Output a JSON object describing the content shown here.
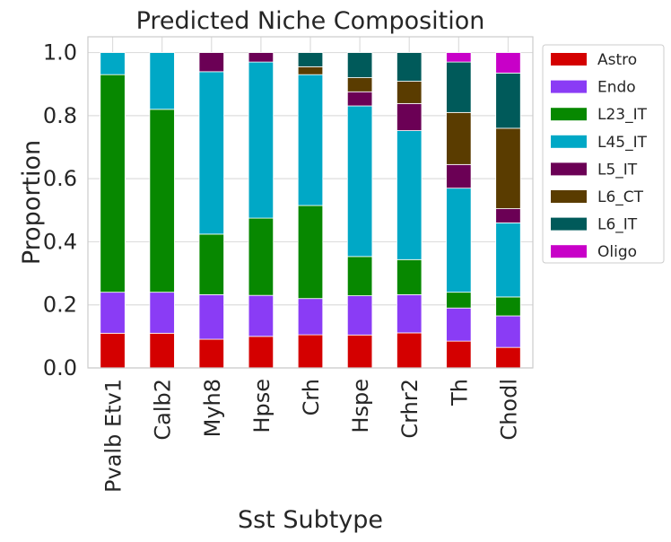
{
  "chart_data": {
    "type": "bar",
    "stacked": true,
    "title": "Predicted Niche Composition",
    "xlabel": "Sst Subtype",
    "ylabel": "Proportion",
    "ylim": [
      0,
      1.05
    ],
    "yticks": [
      "0.0",
      "0.2",
      "0.4",
      "0.6",
      "0.8",
      "1.0"
    ],
    "categories": [
      "Pvalb Etv1",
      "Calb2",
      "Myh8",
      "Hpse",
      "Crh",
      "Hspe",
      "Crhr2",
      "Th",
      "Chodl"
    ],
    "grid": true,
    "legend_position": "outside-right",
    "series": [
      {
        "name": "Astro",
        "color": "#d40000",
        "values": [
          0.11,
          0.11,
          0.09,
          0.1,
          0.105,
          0.105,
          0.11,
          0.085,
          0.065
        ]
      },
      {
        "name": "Endo",
        "color": "#8a3cf5",
        "values": [
          0.13,
          0.13,
          0.14,
          0.13,
          0.115,
          0.125,
          0.12,
          0.105,
          0.1
        ]
      },
      {
        "name": "L23_IT",
        "color": "#078800",
        "values": [
          0.69,
          0.58,
          0.19,
          0.245,
          0.295,
          0.125,
          0.11,
          0.05,
          0.06
        ]
      },
      {
        "name": "L45_IT",
        "color": "#00a8c6",
        "values": [
          0.07,
          0.18,
          0.51,
          0.495,
          0.415,
          0.48,
          0.405,
          0.33,
          0.235
        ]
      },
      {
        "name": "L5_IT",
        "color": "#6b0055",
        "values": [
          0,
          0,
          0.06,
          0.03,
          0,
          0.045,
          0.085,
          0.075,
          0.045
        ]
      },
      {
        "name": "L6_CT",
        "color": "#5a3c00",
        "values": [
          0,
          0,
          0,
          0,
          0.025,
          0.045,
          0.07,
          0.165,
          0.255
        ]
      },
      {
        "name": "L6_IT",
        "color": "#005a5a",
        "values": [
          0,
          0,
          0,
          0,
          0.045,
          0.08,
          0.09,
          0.16,
          0.175
        ]
      },
      {
        "name": "Oligo",
        "color": "#c800c8",
        "values": [
          0,
          0,
          0,
          0,
          0,
          0,
          0,
          0.03,
          0.065
        ]
      }
    ]
  }
}
